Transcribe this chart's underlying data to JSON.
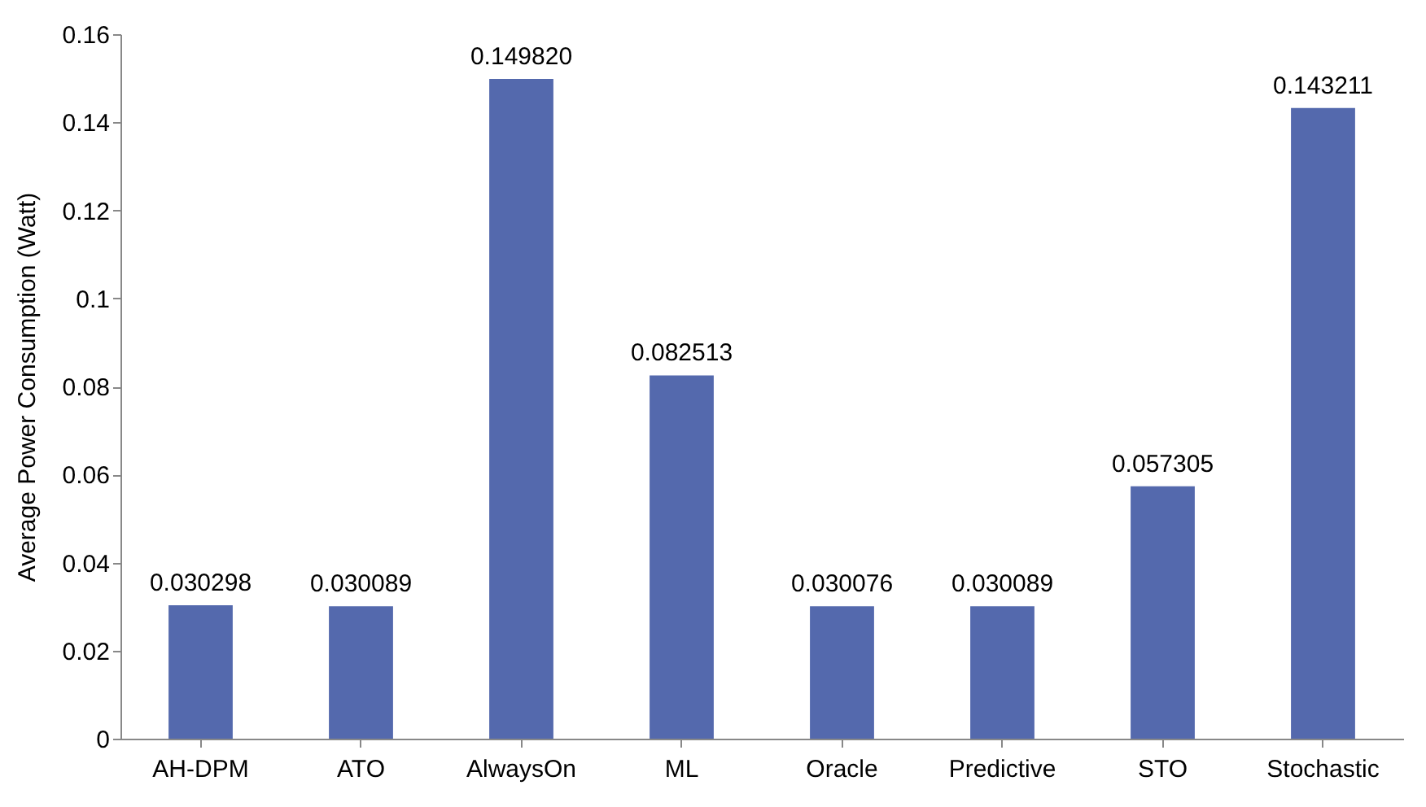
{
  "chart_data": {
    "type": "bar",
    "ylabel": "Average Power Consumption (Watt)",
    "categories": [
      "AH-DPM",
      "ATO",
      "AlwaysOn",
      "ML",
      "Oracle",
      "Predictive",
      "STO",
      "Stochastic"
    ],
    "values": [
      0.030298,
      0.030089,
      0.14982,
      0.082513,
      0.030076,
      0.030089,
      0.057305,
      0.143211
    ],
    "value_labels": [
      "0.030298",
      "0.030089",
      "0.149820",
      "0.082513",
      "0.030076",
      "0.030089",
      "0.057305",
      "0.143211"
    ],
    "color": "#5469ad",
    "ylim": [
      0,
      0.16
    ],
    "yticks": [
      0,
      0.02,
      0.04,
      0.06,
      0.08,
      0.1,
      0.12,
      0.14,
      0.16
    ],
    "grid": false
  }
}
